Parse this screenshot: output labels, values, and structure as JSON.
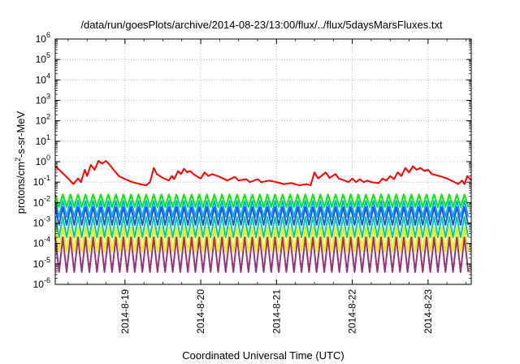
{
  "chart_data": {
    "type": "line",
    "title": "/data/run/goesPlots/archive/2014-08-23/13:00/flux/../flux/5daysMarsFluxes.txt",
    "xlabel": "Coordinated Universal Time (UTC)",
    "ylabel": {
      "prefix": "protons/cm",
      "sup": "2",
      "suffix": "-s-sr-MeV"
    },
    "x_ticks": [
      "2014-8-19",
      "2014-8-20",
      "2014-8-21",
      "2014-8-22",
      "2014-8-23"
    ],
    "y_scale": "log",
    "ylim_exp": [
      -6,
      6
    ],
    "y_ticks_exp": [
      -6,
      -5,
      -4,
      -3,
      -2,
      -1,
      0,
      1,
      2,
      3,
      4,
      5,
      6
    ],
    "y_tick_base": "10",
    "grid": true,
    "x_range_days": [
      18.08,
      23.57
    ],
    "series": [
      {
        "color": "#ff0000",
        "pattern": "trend",
        "points": [
          [
            18.08,
            0.6
          ],
          [
            18.15,
            0.35
          ],
          [
            18.25,
            0.15
          ],
          [
            18.32,
            0.08
          ],
          [
            18.38,
            0.15
          ],
          [
            18.42,
            0.1
          ],
          [
            18.47,
            0.4
          ],
          [
            18.5,
            0.2
          ],
          [
            18.55,
            0.7
          ],
          [
            18.6,
            0.4
          ],
          [
            18.65,
            1.1
          ],
          [
            18.7,
            0.8
          ],
          [
            18.75,
            1.1
          ],
          [
            18.8,
            0.7
          ],
          [
            18.85,
            0.4
          ],
          [
            18.92,
            0.2
          ],
          [
            19.0,
            0.14
          ],
          [
            19.1,
            0.1
          ],
          [
            19.2,
            0.08
          ],
          [
            19.28,
            0.07
          ],
          [
            19.33,
            0.1
          ],
          [
            19.38,
            0.5
          ],
          [
            19.42,
            0.25
          ],
          [
            19.5,
            0.16
          ],
          [
            19.58,
            0.12
          ],
          [
            19.62,
            0.2
          ],
          [
            19.65,
            0.14
          ],
          [
            19.7,
            0.35
          ],
          [
            19.74,
            0.25
          ],
          [
            19.78,
            0.45
          ],
          [
            19.82,
            0.3
          ],
          [
            19.86,
            0.35
          ],
          [
            19.92,
            0.22
          ],
          [
            20.0,
            0.15
          ],
          [
            20.05,
            0.3
          ],
          [
            20.1,
            0.2
          ],
          [
            20.15,
            0.25
          ],
          [
            20.25,
            0.18
          ],
          [
            20.35,
            0.12
          ],
          [
            20.45,
            0.18
          ],
          [
            20.5,
            0.12
          ],
          [
            20.6,
            0.14
          ],
          [
            20.65,
            0.1
          ],
          [
            20.75,
            0.14
          ],
          [
            20.8,
            0.1
          ],
          [
            20.9,
            0.12
          ],
          [
            21.0,
            0.1
          ],
          [
            21.1,
            0.08
          ],
          [
            21.2,
            0.09
          ],
          [
            21.3,
            0.07
          ],
          [
            21.4,
            0.08
          ],
          [
            21.45,
            0.07
          ],
          [
            21.5,
            0.3
          ],
          [
            21.55,
            0.15
          ],
          [
            21.65,
            0.3
          ],
          [
            21.7,
            0.16
          ],
          [
            21.78,
            0.25
          ],
          [
            21.82,
            0.15
          ],
          [
            21.9,
            0.12
          ],
          [
            21.95,
            0.1
          ],
          [
            22.0,
            0.15
          ],
          [
            22.05,
            0.1
          ],
          [
            22.1,
            0.14
          ],
          [
            22.15,
            0.1
          ],
          [
            22.2,
            0.12
          ],
          [
            22.25,
            0.1
          ],
          [
            22.35,
            0.09
          ],
          [
            22.4,
            0.15
          ],
          [
            22.45,
            0.12
          ],
          [
            22.5,
            0.2
          ],
          [
            22.55,
            0.14
          ],
          [
            22.6,
            0.3
          ],
          [
            22.65,
            0.2
          ],
          [
            22.7,
            0.5
          ],
          [
            22.75,
            0.3
          ],
          [
            22.8,
            0.6
          ],
          [
            22.85,
            0.4
          ],
          [
            22.9,
            0.5
          ],
          [
            22.95,
            0.35
          ],
          [
            23.0,
            0.4
          ],
          [
            23.05,
            0.25
          ],
          [
            23.15,
            0.2
          ],
          [
            23.25,
            0.15
          ],
          [
            23.35,
            0.1
          ],
          [
            23.4,
            0.08
          ],
          [
            23.45,
            0.12
          ],
          [
            23.48,
            0.08
          ],
          [
            23.52,
            0.2
          ],
          [
            23.57,
            0.12
          ]
        ]
      },
      {
        "color": "#00ee00",
        "pattern": "sawtooth",
        "start": 18.08,
        "end": 23.57,
        "period": 0.1,
        "hi": 0.025,
        "lo": 0.006
      },
      {
        "color": "#00aaff",
        "pattern": "sawtooth",
        "start": 18.08,
        "end": 23.57,
        "period": 0.1,
        "hi": 0.012,
        "lo": 0.002
      },
      {
        "color": "#2255dd",
        "pattern": "sawtooth",
        "start": 18.08,
        "end": 23.57,
        "period": 0.1,
        "hi": 0.006,
        "lo": 0.0008
      },
      {
        "color": "#00ccaa",
        "pattern": "sawtooth",
        "start": 18.08,
        "end": 23.57,
        "period": 0.1,
        "hi": 0.002,
        "lo": 0.0002
      },
      {
        "color": "#eeee00",
        "pattern": "sawtooth",
        "start": 18.08,
        "end": 23.57,
        "period": 0.1,
        "hi": 0.0006,
        "lo": 4e-05
      },
      {
        "color": "#993377",
        "pattern": "sawtooth",
        "start": 18.08,
        "end": 23.57,
        "period": 0.1,
        "hi": 0.0002,
        "lo": 4e-06
      }
    ]
  }
}
